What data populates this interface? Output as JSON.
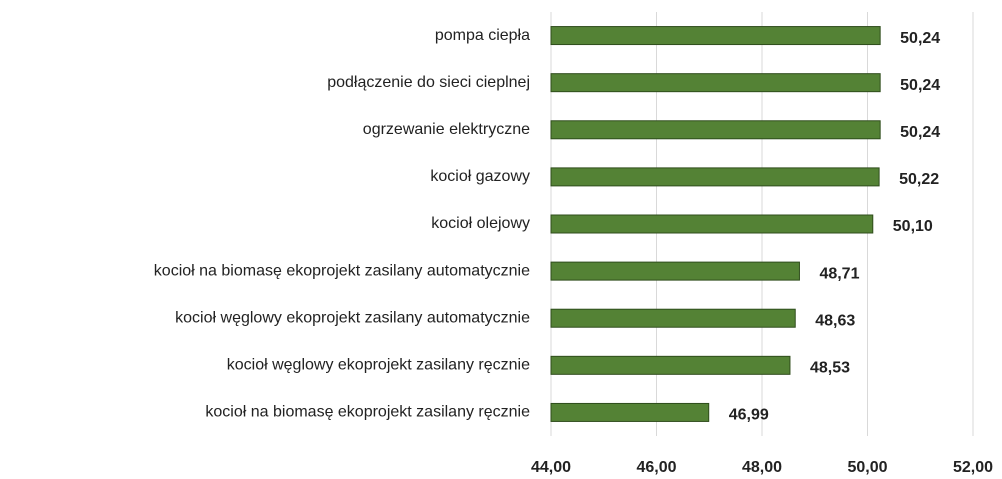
{
  "chart_data": {
    "type": "bar",
    "orientation": "horizontal",
    "categories": [
      "pompa ciepła",
      "podłączenie do sieci cieplnej",
      "ogrzewanie elektryczne",
      "kocioł gazowy",
      "kocioł olejowy",
      "kocioł na biomasę ekoprojekt zasilany automatycznie",
      "kocioł węglowy ekoprojekt zasilany automatycznie",
      "kocioł węglowy ekoprojekt zasilany ręcznie",
      "kocioł na biomasę ekoprojekt zasilany ręcznie"
    ],
    "values": [
      50.24,
      50.24,
      50.24,
      50.22,
      50.1,
      48.71,
      48.63,
      48.53,
      46.99
    ],
    "value_labels": [
      "50,24",
      "50,24",
      "50,24",
      "50,22",
      "50,10",
      "48,71",
      "48,63",
      "48,53",
      "46,99"
    ],
    "color": "#548235",
    "xlim": [
      44,
      52
    ],
    "xticks": [
      {
        "value": 44,
        "label": "44,00"
      },
      {
        "value": 46,
        "label": "46,00"
      },
      {
        "value": 48,
        "label": "48,00"
      },
      {
        "value": 50,
        "label": "50,00"
      },
      {
        "value": 52,
        "label": "52,00"
      }
    ],
    "grid": true
  }
}
